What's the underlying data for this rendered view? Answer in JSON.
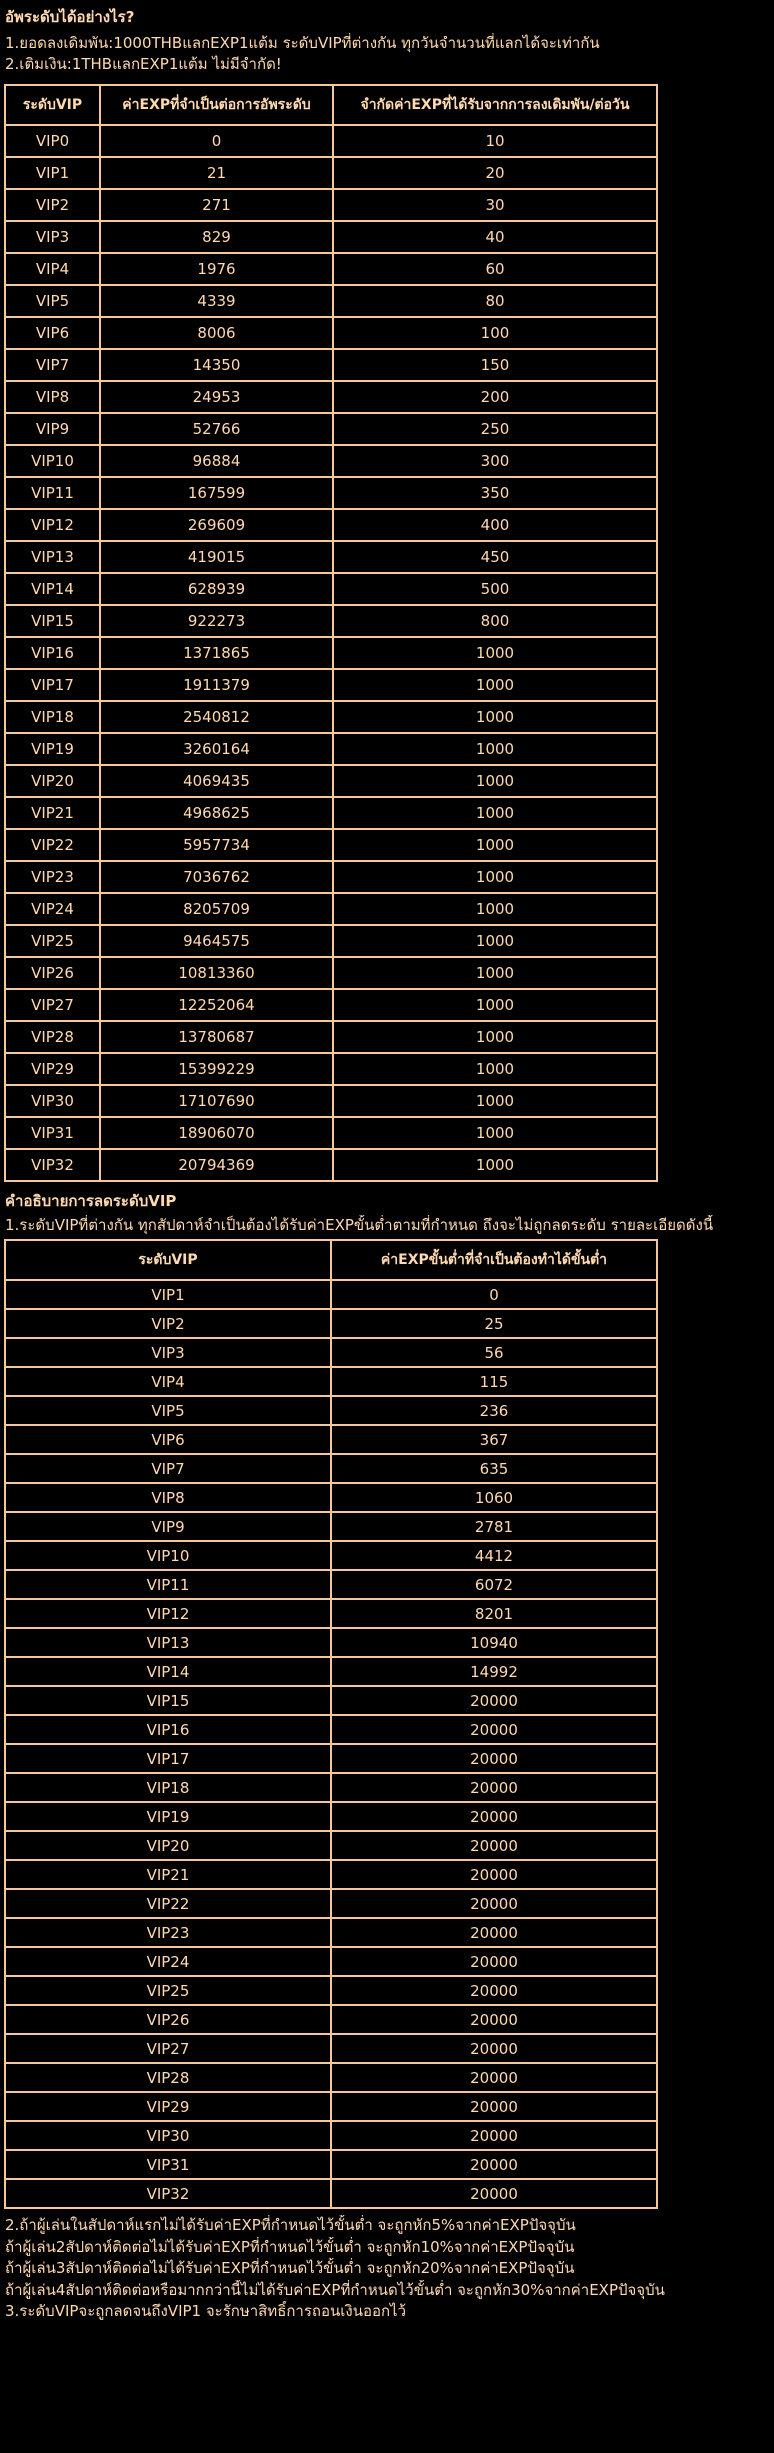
{
  "page": {
    "background_color": "#000000",
    "text_color": "#ffd9af",
    "border_color": "#f4c89c"
  },
  "intro": {
    "title": "อัพระดับได้อย่างไร?",
    "lines": [
      "1.ยอดลงเดิมพัน:1000THBแลกEXP1แต้ม ระดับVIPที่ต่างกัน ทุกวันจำนวนที่แลกได้จะเท่ากัน",
      "2.เติมเงิน:1THBแลกEXP1แต้ม ไม่มีจำกัด!"
    ]
  },
  "upgrade_table": {
    "headers": [
      "ระดับVIP",
      "ค่าEXPที่จำเป็นต่อการอัพระดับ",
      "จำกัดค่าEXPที่ได้รับจากการลงเดิมพัน/ต่อวัน"
    ],
    "rows": [
      [
        "VIP0",
        "0",
        "10"
      ],
      [
        "VIP1",
        "21",
        "20"
      ],
      [
        "VIP2",
        "271",
        "30"
      ],
      [
        "VIP3",
        "829",
        "40"
      ],
      [
        "VIP4",
        "1976",
        "60"
      ],
      [
        "VIP5",
        "4339",
        "80"
      ],
      [
        "VIP6",
        "8006",
        "100"
      ],
      [
        "VIP7",
        "14350",
        "150"
      ],
      [
        "VIP8",
        "24953",
        "200"
      ],
      [
        "VIP9",
        "52766",
        "250"
      ],
      [
        "VIP10",
        "96884",
        "300"
      ],
      [
        "VIP11",
        "167599",
        "350"
      ],
      [
        "VIP12",
        "269609",
        "400"
      ],
      [
        "VIP13",
        "419015",
        "450"
      ],
      [
        "VIP14",
        "628939",
        "500"
      ],
      [
        "VIP15",
        "922273",
        "800"
      ],
      [
        "VIP16",
        "1371865",
        "1000"
      ],
      [
        "VIP17",
        "1911379",
        "1000"
      ],
      [
        "VIP18",
        "2540812",
        "1000"
      ],
      [
        "VIP19",
        "3260164",
        "1000"
      ],
      [
        "VIP20",
        "4069435",
        "1000"
      ],
      [
        "VIP21",
        "4968625",
        "1000"
      ],
      [
        "VIP22",
        "5957734",
        "1000"
      ],
      [
        "VIP23",
        "7036762",
        "1000"
      ],
      [
        "VIP24",
        "8205709",
        "1000"
      ],
      [
        "VIP25",
        "9464575",
        "1000"
      ],
      [
        "VIP26",
        "10813360",
        "1000"
      ],
      [
        "VIP27",
        "12252064",
        "1000"
      ],
      [
        "VIP28",
        "13780687",
        "1000"
      ],
      [
        "VIP29",
        "15399229",
        "1000"
      ],
      [
        "VIP30",
        "17107690",
        "1000"
      ],
      [
        "VIP31",
        "18906070",
        "1000"
      ],
      [
        "VIP32",
        "20794369",
        "1000"
      ]
    ]
  },
  "downgrade_section": {
    "title": "คำอธิบายการลดระดับVIP",
    "line": "1.ระดับVIPที่ต่างกัน ทุกสัปดาห์จำเป็นต้องได้รับค่าEXPขั้นต่ำตามที่กำหนด ถึงจะไม่ถูกลดระดับ รายละเอียดดังนี้"
  },
  "retention_table": {
    "headers": [
      "ระดับVIP",
      "ค่าEXPขั้นต่ำที่จำเป็นต้องทำได้ขั้นต่ำ"
    ],
    "rows": [
      [
        "VIP1",
        "0"
      ],
      [
        "VIP2",
        "25"
      ],
      [
        "VIP3",
        "56"
      ],
      [
        "VIP4",
        "115"
      ],
      [
        "VIP5",
        "236"
      ],
      [
        "VIP6",
        "367"
      ],
      [
        "VIP7",
        "635"
      ],
      [
        "VIP8",
        "1060"
      ],
      [
        "VIP9",
        "2781"
      ],
      [
        "VIP10",
        "4412"
      ],
      [
        "VIP11",
        "6072"
      ],
      [
        "VIP12",
        "8201"
      ],
      [
        "VIP13",
        "10940"
      ],
      [
        "VIP14",
        "14992"
      ],
      [
        "VIP15",
        "20000"
      ],
      [
        "VIP16",
        "20000"
      ],
      [
        "VIP17",
        "20000"
      ],
      [
        "VIP18",
        "20000"
      ],
      [
        "VIP19",
        "20000"
      ],
      [
        "VIP20",
        "20000"
      ],
      [
        "VIP21",
        "20000"
      ],
      [
        "VIP22",
        "20000"
      ],
      [
        "VIP23",
        "20000"
      ],
      [
        "VIP24",
        "20000"
      ],
      [
        "VIP25",
        "20000"
      ],
      [
        "VIP26",
        "20000"
      ],
      [
        "VIP27",
        "20000"
      ],
      [
        "VIP28",
        "20000"
      ],
      [
        "VIP29",
        "20000"
      ],
      [
        "VIP30",
        "20000"
      ],
      [
        "VIP31",
        "20000"
      ],
      [
        "VIP32",
        "20000"
      ]
    ]
  },
  "footer": {
    "lines": [
      "2.ถ้าผู้เล่นในสัปดาห์แรกไม่ได้รับค่าEXPที่กำหนดไว้ขั้นต่ำ จะถูกหัก5%จากค่าEXPปัจจุบัน",
      "ถ้าผู้เล่น2สัปดาห์ติดต่อไม่ได้รับค่าEXPที่กำหนดไว้ขั้นต่ำ จะถูกหัก10%จากค่าEXPปัจจุบัน",
      "ถ้าผู้เล่น3สัปดาห์ติดต่อไม่ได้รับค่าEXPที่กำหนดไว้ขั้นต่ำ จะถูกหัก20%จากค่าEXPปัจจุบัน",
      "ถ้าผู้เล่น4สัปดาห์ติดต่อหรือมากกว่านี้ไม่ได้รับค่าEXPที่กำหนดไว้ขั้นต่ำ จะถูกหัก30%จากค่าEXPปัจจุบัน",
      "3.ระดับVIPจะถูกลดจนถึงVIP1 จะรักษาสิทธิ์การถอนเงินออกไว้"
    ]
  }
}
